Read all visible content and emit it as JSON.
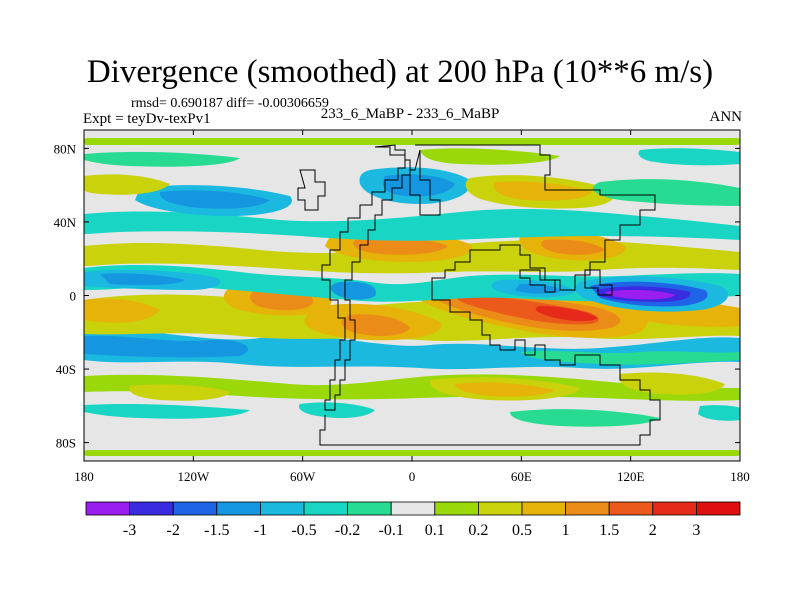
{
  "header": {
    "title": "Divergence (smoothed) at 200 hPa (10**6 m/s)",
    "stats": "rmsd= 0.690187 diff= -0.00306659",
    "experiment": "Expt = teyDv-texPv1",
    "case": "233_6_MaBP - 233_6_MaBP",
    "season": "ANN"
  },
  "chart_data": {
    "type": "heatmap",
    "title": "Divergence (smoothed) at 200 hPa (10**6 m/s)",
    "xlabel": "",
    "ylabel": "",
    "xlim": [
      -180,
      180
    ],
    "ylim": [
      -90,
      90
    ],
    "x_ticks": [
      {
        "value": -180,
        "label": "180"
      },
      {
        "value": -120,
        "label": "120W"
      },
      {
        "value": -60,
        "label": "60W"
      },
      {
        "value": 0,
        "label": "0"
      },
      {
        "value": 60,
        "label": "60E"
      },
      {
        "value": 120,
        "label": "120E"
      },
      {
        "value": 180,
        "label": "180"
      }
    ],
    "y_ticks": [
      {
        "value": 80,
        "label": "80N"
      },
      {
        "value": 40,
        "label": "40N"
      },
      {
        "value": 0,
        "label": "0"
      },
      {
        "value": -40,
        "label": "40S"
      },
      {
        "value": -80,
        "label": "80S"
      }
    ],
    "colorbar": {
      "levels": [
        "-3",
        "-2",
        "-1.5",
        "-1",
        "-0.5",
        "-0.2",
        "-0.1",
        "0.1",
        "0.2",
        "0.5",
        "1",
        "1.5",
        "2",
        "3"
      ],
      "colors": [
        "#9a1ef0",
        "#3a2be0",
        "#1f64e6",
        "#1496e0",
        "#1bb9e0",
        "#19d5c4",
        "#27dc92",
        "#e6e6e6",
        "#9ad80a",
        "#c9d20a",
        "#e6b309",
        "#ec8c18",
        "#ec5a1b",
        "#e62a19",
        "#e00f0f"
      ]
    },
    "regions": [
      {
        "lon": -150,
        "lat": -12,
        "value": 1.2
      },
      {
        "lon": -75,
        "lat": -14,
        "value": 1.5
      },
      {
        "lon": -25,
        "lat": -12,
        "value": 1.4
      },
      {
        "lon": 45,
        "lat": -8,
        "value": 1.5
      },
      {
        "lon": 85,
        "lat": -13,
        "value": 2.2
      },
      {
        "lon": 130,
        "lat": -25,
        "value": 0.5
      },
      {
        "lon": -100,
        "lat": -40,
        "value": 0.6
      },
      {
        "lon": 40,
        "lat": -40,
        "value": 0.6
      },
      {
        "lon": 10,
        "lat": 22,
        "value": 0.5
      },
      {
        "lon": 95,
        "lat": 25,
        "value": 0.8
      },
      {
        "lon": -150,
        "lat": 5,
        "value": -1.0
      },
      {
        "lon": -50,
        "lat": 8,
        "value": -1.0
      },
      {
        "lon": 20,
        "lat": 5,
        "value": -1.0
      },
      {
        "lon": 75,
        "lat": 3,
        "value": -1.5
      },
      {
        "lon": 122,
        "lat": 0,
        "value": -3.0
      },
      {
        "lon": -120,
        "lat": 52,
        "value": -0.5
      },
      {
        "lon": -10,
        "lat": 48,
        "value": -0.8
      },
      {
        "lon": 30,
        "lat": 42,
        "value": 0.4
      },
      {
        "lon": -155,
        "lat": -58,
        "value": -0.3
      },
      {
        "lon": 55,
        "lat": -55,
        "value": -0.3
      }
    ]
  }
}
